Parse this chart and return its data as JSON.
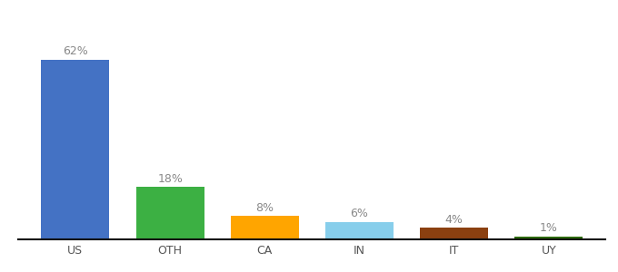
{
  "categories": [
    "US",
    "OTH",
    "CA",
    "IN",
    "IT",
    "UY"
  ],
  "values": [
    62,
    18,
    8,
    6,
    4,
    1
  ],
  "labels": [
    "62%",
    "18%",
    "8%",
    "6%",
    "4%",
    "1%"
  ],
  "bar_colors": [
    "#4472C4",
    "#3CB043",
    "#FFA500",
    "#87CEEB",
    "#8B4010",
    "#2D6A00"
  ],
  "ylim": [
    0,
    75
  ],
  "background_color": "#ffffff",
  "label_color": "#888888",
  "label_fontsize": 9,
  "tick_fontsize": 9,
  "bar_width": 0.72
}
